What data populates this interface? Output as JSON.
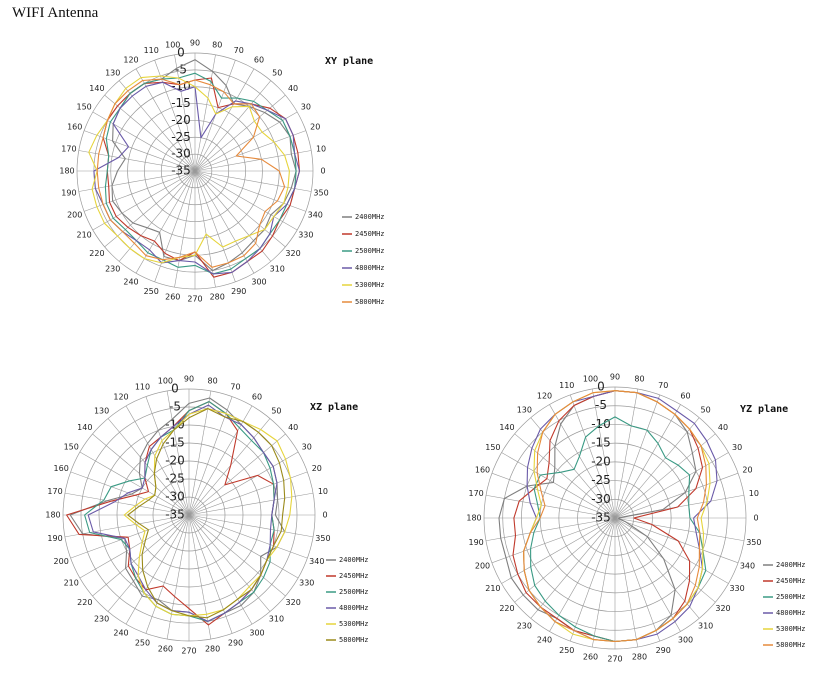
{
  "page": {
    "title": "WIFI Antenna"
  },
  "chart_data": [
    {
      "type": "polar",
      "title": "XY plane",
      "r_ticks": [
        "0",
        "-5",
        "-10",
        "-15",
        "-20",
        "-25",
        "-30",
        "-35"
      ],
      "rlim": [
        -35,
        0
      ],
      "angle_ticks": [
        0,
        10,
        20,
        30,
        40,
        50,
        60,
        70,
        80,
        90,
        100,
        110,
        120,
        130,
        140,
        150,
        160,
        170,
        180,
        190,
        200,
        210,
        220,
        230,
        240,
        250,
        260,
        270,
        280,
        290,
        300,
        310,
        320,
        330,
        340,
        350
      ],
      "legend_position": "right",
      "grid": true,
      "series": [
        {
          "name": "2400MHz",
          "color": "#7f7f7f",
          "values": [
            -5,
            -6,
            -5,
            -6,
            -8,
            -10,
            -12,
            -8,
            -5,
            -2,
            -4,
            -6,
            -5,
            -5,
            -6,
            -7,
            -9,
            -14,
            -12,
            -10,
            -9,
            -10,
            -11,
            -13,
            -14,
            -8,
            -8,
            -10,
            -5,
            -6,
            -7,
            -8,
            -8,
            -9,
            -7,
            -6
          ]
        },
        {
          "name": "2450MHz",
          "color": "#c0392b",
          "values": [
            -4,
            -4,
            -4,
            -4,
            -6,
            -9,
            -12,
            -15,
            -7,
            -8,
            -9,
            -7,
            -5,
            -5,
            -5,
            -5,
            -6,
            -9,
            -9,
            -9,
            -8,
            -8,
            -9,
            -10,
            -11,
            -9,
            -8,
            -11,
            -3,
            -3,
            -4,
            -4,
            -5,
            -6,
            -5,
            -5
          ]
        },
        {
          "name": "2500MHz",
          "color": "#3a9a84",
          "values": [
            -5,
            -5,
            -5,
            -5,
            -7,
            -8,
            -10,
            -12,
            -8,
            -6,
            -7,
            -6,
            -5,
            -5,
            -6,
            -6,
            -7,
            -9,
            -9,
            -8,
            -7,
            -7,
            -8,
            -8,
            -7,
            -7,
            -6,
            -7,
            -4,
            -4,
            -5,
            -5,
            -6,
            -6,
            -6,
            -5
          ]
        },
        {
          "name": "4800MHz",
          "color": "#6a5aa8",
          "values": [
            -4,
            -5,
            -4,
            -4,
            -7,
            -9,
            -11,
            -17,
            -25,
            -10,
            -11,
            -7,
            -6,
            -6,
            -6,
            -7,
            -14,
            -12,
            -5,
            -5,
            -6,
            -6,
            -7,
            -8,
            -8,
            -6,
            -8,
            -8,
            -4,
            -3,
            -4,
            -5,
            -6,
            -8,
            -6,
            -5
          ]
        },
        {
          "name": "5300MHz",
          "color": "#e6d43c",
          "values": [
            -7,
            -8,
            -10,
            -12,
            -12,
            -10,
            -13,
            -17,
            -13,
            -10,
            -7,
            -5,
            -3,
            -3,
            -4,
            -5,
            -4,
            -3,
            -6,
            -4,
            -4,
            -4,
            -5,
            -5,
            -5,
            -6,
            -9,
            -10,
            -16,
            -11,
            -11,
            -10,
            -8,
            -8,
            -7,
            -7
          ]
        },
        {
          "name": "5800MHz",
          "color": "#e68a3c",
          "values": [
            -10,
            -15,
            -22,
            -15,
            -10,
            -9,
            -12,
            -10,
            -9,
            -8,
            -9,
            -6,
            -4,
            -4,
            -4,
            -5,
            -6,
            -6,
            -6,
            -6,
            -6,
            -6,
            -7,
            -7,
            -6,
            -7,
            -9,
            -11,
            -6,
            -6,
            -6,
            -7,
            -10,
            -11,
            -9,
            -8
          ]
        }
      ]
    },
    {
      "type": "polar",
      "title": "XZ plane",
      "r_ticks": [
        "0",
        "-5",
        "-10",
        "-15",
        "-20",
        "-25",
        "-30",
        "-35"
      ],
      "rlim": [
        -35,
        0
      ],
      "angle_ticks": [
        0,
        10,
        20,
        30,
        40,
        50,
        60,
        70,
        80,
        90,
        100,
        110,
        120,
        130,
        140,
        150,
        160,
        170,
        180,
        190,
        200,
        210,
        220,
        230,
        240,
        250,
        260,
        270,
        280,
        290,
        300,
        310,
        320,
        330,
        340,
        350
      ],
      "legend_position": "right",
      "grid": true,
      "series": [
        {
          "name": "2400MHz",
          "color": "#7f7f7f",
          "values": [
            -11,
            -10,
            -9,
            -8,
            -8,
            -7,
            -6,
            -4,
            -2,
            -4,
            -8,
            -10,
            -12,
            -14,
            -17,
            -20,
            -18,
            -12,
            -2,
            -5,
            -16,
            -15,
            -12,
            -11,
            -9,
            -10,
            -8,
            -8,
            -5,
            -6,
            -6,
            -7,
            -9,
            -12,
            -9,
            -8
          ]
        },
        {
          "name": "2450MHz",
          "color": "#c0392b",
          "values": [
            -12,
            -11,
            -10,
            -13,
            -22,
            -17,
            -8,
            -5,
            -3,
            -6,
            -10,
            -12,
            -13,
            -16,
            -19,
            -22,
            -19,
            -13,
            -1,
            -4,
            -17,
            -16,
            -13,
            -12,
            -11,
            -14,
            -12,
            -9,
            -4,
            -6,
            -7,
            -8,
            -9,
            -10,
            -10,
            -11
          ]
        },
        {
          "name": "2500MHz",
          "color": "#3a9a84",
          "values": [
            -12,
            -11,
            -10,
            -9,
            -8,
            -8,
            -7,
            -5,
            -3,
            -6,
            -11,
            -12,
            -14,
            -17,
            -19,
            -16,
            -12,
            -11,
            -6,
            -7,
            -15,
            -16,
            -14,
            -12,
            -10,
            -8,
            -7,
            -7,
            -5,
            -6,
            -7,
            -7,
            -8,
            -9,
            -11,
            -11
          ]
        },
        {
          "name": "4800MHz",
          "color": "#6a5aa8",
          "values": [
            -12,
            -11,
            -9,
            -8,
            -8,
            -7,
            -6,
            -6,
            -4,
            -7,
            -10,
            -12,
            -14,
            -16,
            -19,
            -20,
            -17,
            -14,
            -7,
            -8,
            -16,
            -16,
            -14,
            -13,
            -11,
            -9,
            -8,
            -8,
            -5,
            -6,
            -7,
            -8,
            -9,
            -10,
            -11,
            -12
          ]
        },
        {
          "name": "5300MHz",
          "color": "#e6d43c",
          "values": [
            -7,
            -6,
            -5,
            -4,
            -3,
            -4,
            -5,
            -5,
            -5,
            -7,
            -11,
            -13,
            -16,
            -20,
            -23,
            -24,
            -22,
            -20,
            -17,
            -20,
            -22,
            -20,
            -17,
            -13,
            -10,
            -8,
            -7,
            -7,
            -7,
            -7,
            -8,
            -9,
            -9,
            -10,
            -9,
            -8
          ]
        },
        {
          "name": "5800MHz",
          "color": "#9a8a1a",
          "values": [
            -9,
            -8,
            -7,
            -6,
            -5,
            -5,
            -5,
            -6,
            -5,
            -8,
            -11,
            -14,
            -17,
            -20,
            -23,
            -24,
            -23,
            -21,
            -18,
            -21,
            -23,
            -21,
            -18,
            -15,
            -12,
            -9,
            -8,
            -7,
            -6,
            -7,
            -8,
            -8,
            -9,
            -10,
            -10,
            -9
          ]
        }
      ]
    },
    {
      "type": "polar",
      "title": "YZ plane",
      "r_ticks": [
        "0",
        "-5",
        "-10",
        "-15",
        "-20",
        "-25",
        "-30",
        "-35"
      ],
      "rlim": [
        -35,
        0
      ],
      "angle_ticks": [
        0,
        10,
        20,
        30,
        40,
        50,
        60,
        70,
        80,
        90,
        100,
        110,
        120,
        130,
        140,
        150,
        160,
        170,
        180,
        190,
        200,
        210,
        220,
        230,
        240,
        250,
        260,
        270,
        280,
        290,
        300,
        310,
        320,
        330,
        340,
        350
      ],
      "legend_position": "right",
      "grid": true,
      "series": [
        {
          "name": "2400MHz",
          "color": "#7f7f7f",
          "values": [
            -34,
            -22,
            -15,
            -10,
            -8,
            -5,
            -3,
            -2,
            -1,
            -1,
            -2,
            -3,
            -6,
            -10,
            -14,
            -16,
            -10,
            -5,
            -4,
            -4,
            -4,
            -3,
            -3,
            -3,
            -4,
            -3,
            -3,
            -2,
            -2,
            -3,
            -5,
            -10,
            -18,
            -25,
            -32,
            -34
          ]
        },
        {
          "name": "2450MHz",
          "color": "#c0392b",
          "values": [
            -30,
            -18,
            -12,
            -8,
            -6,
            -4,
            -3,
            -2,
            -1,
            -1,
            -2,
            -3,
            -5,
            -8,
            -12,
            -14,
            -12,
            -9,
            -8,
            -8,
            -6,
            -5,
            -4,
            -4,
            -4,
            -3,
            -3,
            -2,
            -2,
            -3,
            -4,
            -6,
            -9,
            -12,
            -17,
            -25
          ]
        },
        {
          "name": "2500MHz",
          "color": "#3a9a84",
          "values": [
            -15,
            -15,
            -14,
            -12,
            -13,
            -14,
            -12,
            -10,
            -10,
            -8,
            -10,
            -12,
            -16,
            -18,
            -16,
            -12,
            -12,
            -14,
            -15,
            -13,
            -11,
            -9,
            -7,
            -6,
            -5,
            -4,
            -3,
            -2,
            -2,
            -3,
            -4,
            -5,
            -6,
            -7,
            -10,
            -12
          ]
        },
        {
          "name": "4800MHz",
          "color": "#6a5aa8",
          "values": [
            -14,
            -9,
            -6,
            -4,
            -3,
            -2,
            -2,
            -1,
            -1,
            -1,
            -2,
            -2,
            -3,
            -4,
            -6,
            -8,
            -10,
            -12,
            -14,
            -12,
            -9,
            -7,
            -5,
            -4,
            -3,
            -3,
            -2,
            -2,
            -2,
            -2,
            -3,
            -4,
            -6,
            -8,
            -11,
            -13
          ]
        },
        {
          "name": "5300MHz",
          "color": "#e6d43c",
          "values": [
            -12,
            -10,
            -8,
            -6,
            -5,
            -4,
            -3,
            -2,
            -1,
            -1,
            -1,
            -2,
            -3,
            -5,
            -7,
            -10,
            -13,
            -15,
            -14,
            -12,
            -9,
            -7,
            -5,
            -4,
            -3,
            -2,
            -2,
            -2,
            -2,
            -3,
            -4,
            -5,
            -6,
            -8,
            -10,
            -11
          ]
        },
        {
          "name": "5800MHz",
          "color": "#e68a3c",
          "values": [
            -13,
            -11,
            -9,
            -7,
            -5,
            -4,
            -3,
            -2,
            -1,
            -1,
            -1,
            -2,
            -3,
            -5,
            -8,
            -11,
            -14,
            -16,
            -15,
            -12,
            -9,
            -7,
            -5,
            -4,
            -3,
            -3,
            -2,
            -2,
            -2,
            -3,
            -4,
            -5,
            -7,
            -9,
            -11,
            -12
          ]
        }
      ]
    }
  ]
}
